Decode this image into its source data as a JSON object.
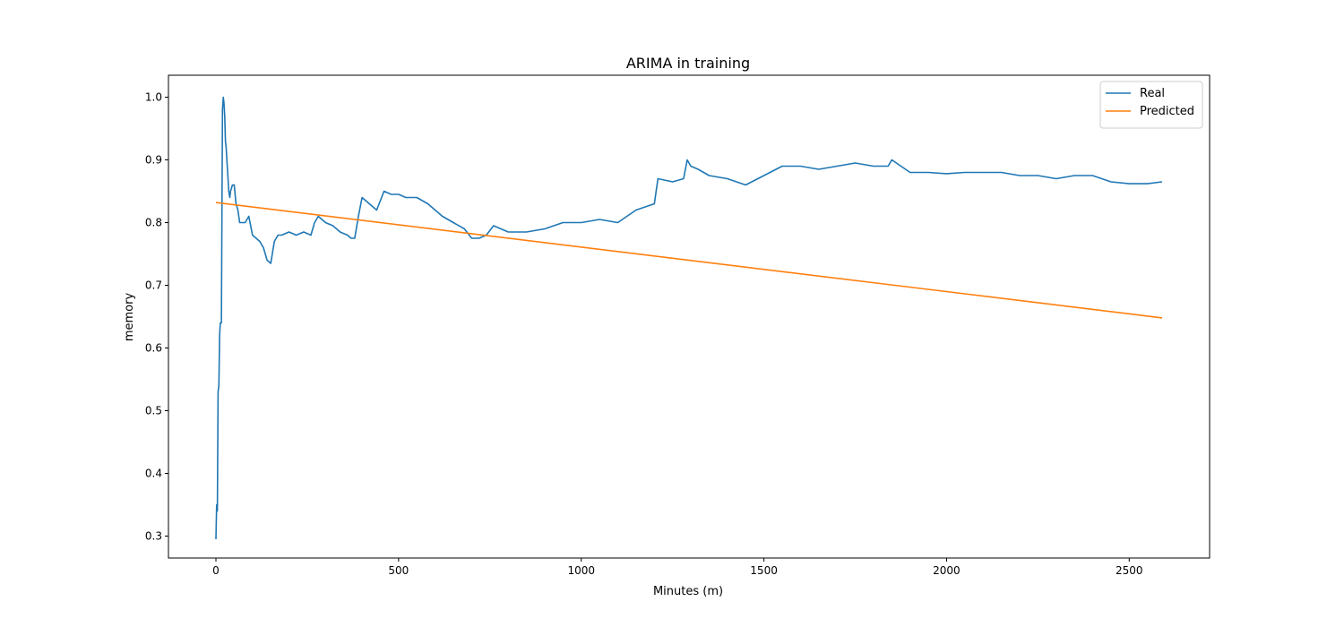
{
  "chart_data": {
    "type": "line",
    "title": "ARIMA in training",
    "xlabel": "Minutes (m)",
    "ylabel": "memory",
    "xlim": [
      -130,
      2720
    ],
    "ylim": [
      0.265,
      1.035
    ],
    "xticks": [
      0,
      500,
      1000,
      1500,
      2000,
      2500
    ],
    "yticks": [
      0.3,
      0.4,
      0.5,
      0.6,
      0.7,
      0.8,
      0.9,
      1.0
    ],
    "grid": false,
    "legend_position": "top-right",
    "series": [
      {
        "name": "Real",
        "color": "#1f77b4",
        "x": [
          0,
          2,
          4,
          6,
          8,
          10,
          12,
          15,
          18,
          20,
          22,
          24,
          26,
          28,
          30,
          32,
          35,
          38,
          40,
          45,
          50,
          55,
          60,
          65,
          70,
          80,
          90,
          100,
          110,
          120,
          130,
          140,
          150,
          160,
          170,
          180,
          200,
          220,
          240,
          260,
          270,
          280,
          300,
          320,
          340,
          360,
          370,
          380,
          390,
          400,
          420,
          440,
          460,
          480,
          500,
          520,
          550,
          580,
          600,
          620,
          650,
          680,
          700,
          720,
          740,
          760,
          800,
          850,
          900,
          950,
          1000,
          1050,
          1100,
          1150,
          1200,
          1210,
          1250,
          1280,
          1290,
          1300,
          1320,
          1350,
          1400,
          1450,
          1500,
          1550,
          1600,
          1650,
          1700,
          1750,
          1800,
          1840,
          1850,
          1900,
          1950,
          2000,
          2050,
          2100,
          2150,
          2200,
          2250,
          2300,
          2350,
          2400,
          2450,
          2500,
          2550,
          2590
        ],
        "values": [
          0.295,
          0.35,
          0.34,
          0.53,
          0.54,
          0.62,
          0.64,
          0.64,
          0.98,
          1.0,
          0.99,
          0.97,
          0.93,
          0.92,
          0.9,
          0.88,
          0.85,
          0.84,
          0.85,
          0.86,
          0.86,
          0.83,
          0.82,
          0.8,
          0.8,
          0.8,
          0.81,
          0.78,
          0.775,
          0.77,
          0.76,
          0.74,
          0.735,
          0.77,
          0.78,
          0.78,
          0.785,
          0.78,
          0.785,
          0.78,
          0.8,
          0.81,
          0.8,
          0.795,
          0.785,
          0.78,
          0.775,
          0.775,
          0.81,
          0.84,
          0.83,
          0.82,
          0.85,
          0.845,
          0.845,
          0.84,
          0.84,
          0.83,
          0.82,
          0.81,
          0.8,
          0.79,
          0.775,
          0.775,
          0.78,
          0.795,
          0.785,
          0.785,
          0.79,
          0.8,
          0.8,
          0.805,
          0.8,
          0.82,
          0.83,
          0.87,
          0.865,
          0.87,
          0.9,
          0.89,
          0.885,
          0.875,
          0.87,
          0.86,
          0.875,
          0.89,
          0.89,
          0.885,
          0.89,
          0.895,
          0.89,
          0.89,
          0.9,
          0.88,
          0.88,
          0.878,
          0.88,
          0.88,
          0.88,
          0.875,
          0.875,
          0.87,
          0.875,
          0.875,
          0.865,
          0.862,
          0.862,
          0.865
        ]
      },
      {
        "name": "Predicted",
        "color": "#ff7f0e",
        "x": [
          0,
          2590
        ],
        "values": [
          0.832,
          0.648
        ]
      }
    ]
  }
}
